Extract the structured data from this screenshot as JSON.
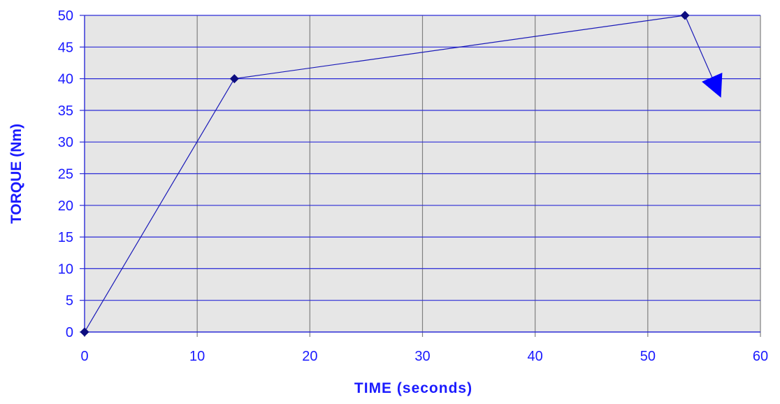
{
  "chart_data": {
    "type": "line",
    "title": "",
    "xlabel": "TIME (seconds)",
    "ylabel": "TORQUE (Nm)",
    "xlim": [
      0,
      60
    ],
    "ylim": [
      0,
      50
    ],
    "x_ticks": [
      0,
      10,
      20,
      30,
      40,
      50,
      60
    ],
    "y_ticks": [
      0,
      5,
      10,
      15,
      20,
      25,
      30,
      35,
      40,
      45,
      50
    ],
    "grid": true,
    "legend": "none",
    "series": [
      {
        "points": [
          {
            "x": 0,
            "y": 0
          },
          {
            "x": 13.3,
            "y": 40
          },
          {
            "x": 53.3,
            "y": 50
          }
        ],
        "arrow": {
          "from": {
            "x": 53.3,
            "y": 50
          },
          "to": {
            "x": 56.5,
            "y": 37
          }
        }
      }
    ],
    "colors": {
      "plot_background": "#e6e6e6",
      "horizontal_grid": "#2b2bd6",
      "vertical_grid": "#808080",
      "line": "#1a1ab8",
      "marker": "#0d0d80",
      "arrow": "#0000ff",
      "text": "#1a1aff"
    }
  }
}
